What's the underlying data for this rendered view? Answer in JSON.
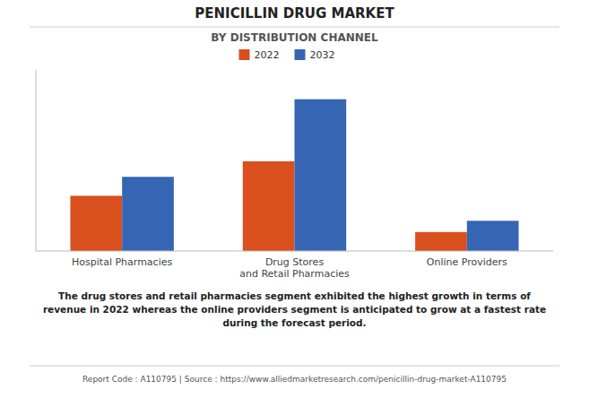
{
  "chart_data": {
    "type": "bar",
    "title": "PENICILLIN DRUG MARKET",
    "subtitle": "BY DISTRIBUTION CHANNEL",
    "categories": [
      "Hospital Pharmacies",
      "Drug Stores\nand Retail Pharmacies",
      "Online Providers"
    ],
    "series": [
      {
        "name": "2022",
        "color": "#d94f1e",
        "values": [
          3.2,
          5.2,
          1.1
        ]
      },
      {
        "name": "2032",
        "color": "#3665b3",
        "values": [
          4.3,
          8.8,
          1.75
        ]
      }
    ],
    "ylim": [
      0,
      10.5
    ],
    "grid": false,
    "tick_labels": "x",
    "legend": "top",
    "annotations": [
      "The drug stores and retail pharmacies segment exhibited the highest growth in terms of\nrevenue in 2022 whereas the online providers segment is anticipated to grow at a fastest rate\nduring the forecast period.",
      "Report Code : A110795  |  Source : https://www.alliedmarketresearch.com/penicillin-drug-market-A110795"
    ]
  }
}
